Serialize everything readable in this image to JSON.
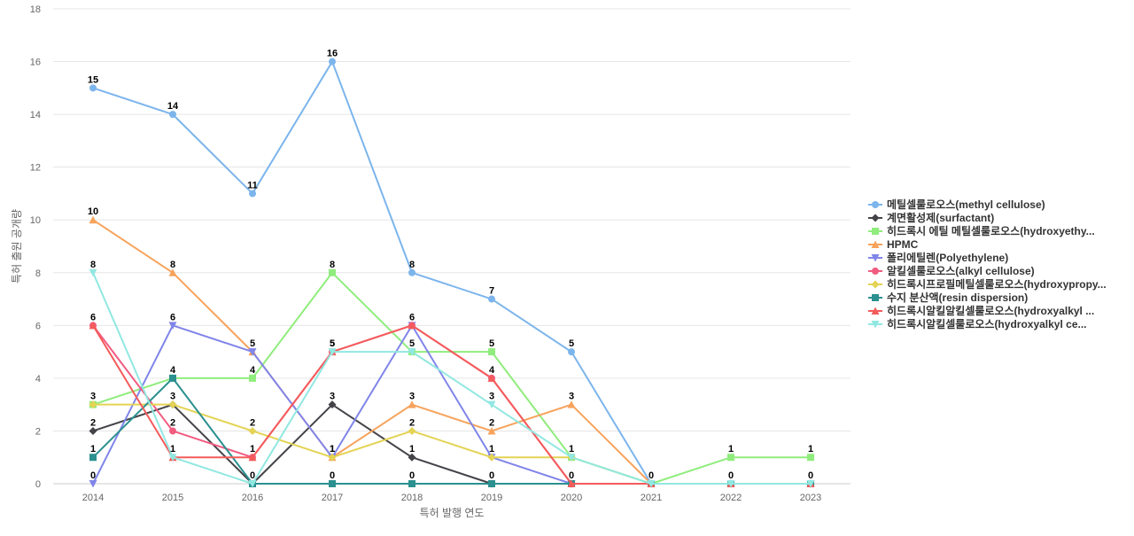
{
  "chart_data": {
    "type": "line",
    "title": "",
    "xlabel": "특허 발행 연도",
    "ylabel": "특허 출원 공개량",
    "ylim": [
      0,
      18
    ],
    "yticks": [
      0,
      2,
      4,
      6,
      8,
      10,
      12,
      14,
      16,
      18
    ],
    "categories": [
      "2014",
      "2015",
      "2016",
      "2017",
      "2018",
      "2019",
      "2020",
      "2021",
      "2022",
      "2023"
    ],
    "grid": true,
    "legend_position": "right",
    "series": [
      {
        "name": "메틸셀룰로오스(methyl cellulose)",
        "color": "#7cb5ec",
        "marker": "circle",
        "values": [
          15,
          14,
          11,
          16,
          8,
          7,
          5,
          0,
          0,
          0
        ]
      },
      {
        "name": "계면활성제(surfactant)",
        "color": "#434348",
        "marker": "diamond",
        "values": [
          2,
          3,
          0,
          3,
          1,
          0,
          0,
          0,
          0,
          0
        ]
      },
      {
        "name": "히드록시 에틸 메틸셀룰로오스(hydroxyethy...",
        "color": "#90ed7d",
        "marker": "square",
        "values": [
          3,
          4,
          4,
          8,
          5,
          5,
          1,
          0,
          1,
          1
        ]
      },
      {
        "name": "HPMC",
        "color": "#f7a35c",
        "marker": "triangle",
        "values": [
          10,
          8,
          5,
          1,
          3,
          2,
          3,
          0,
          0,
          0
        ]
      },
      {
        "name": "폴리에틸렌(Polyethylene)",
        "color": "#8085e9",
        "marker": "triangle-down",
        "values": [
          0,
          6,
          5,
          1,
          6,
          1,
          0,
          0,
          0,
          0
        ]
      },
      {
        "name": "알킬셀룰로오스(alkyl cellulose)",
        "color": "#f15c80",
        "marker": "circle",
        "values": [
          6,
          2,
          1,
          5,
          6,
          4,
          0,
          0,
          0,
          0
        ]
      },
      {
        "name": "히드록시프로필메틸셀룰로오스(hydroxypropy...",
        "color": "#e4d354",
        "marker": "diamond",
        "values": [
          3,
          3,
          2,
          1,
          2,
          1,
          1,
          0,
          0,
          0
        ]
      },
      {
        "name": "수지 분산액(resin dispersion)",
        "color": "#2b908f",
        "marker": "square",
        "values": [
          1,
          4,
          0,
          0,
          0,
          0,
          0,
          0,
          0,
          0
        ]
      },
      {
        "name": "히드록시알킬알킬셀룰로오스(hydroxyalkyl ...",
        "color": "#f45b5b",
        "marker": "triangle",
        "values": [
          6,
          1,
          1,
          5,
          6,
          4,
          0,
          0,
          0,
          0
        ]
      },
      {
        "name": "히드록시알킬셀룰로오스(hydroxyalkyl ce...",
        "color": "#91e8e1",
        "marker": "triangle-down",
        "values": [
          8,
          1,
          0,
          5,
          5,
          3,
          1,
          0,
          0,
          0
        ]
      }
    ],
    "data_labels": [
      {
        "category": "2014",
        "labels": [
          "15",
          "10",
          "8",
          "6",
          "3",
          "2",
          "1",
          "0"
        ]
      },
      {
        "category": "2015",
        "labels": [
          "14",
          "8",
          "6",
          "4",
          "3",
          "2",
          "1"
        ]
      },
      {
        "category": "2016",
        "labels": [
          "11",
          "5",
          "4",
          "2",
          "1",
          "0"
        ]
      },
      {
        "category": "2017",
        "labels": [
          "16",
          "8",
          "5",
          "5",
          "3",
          "1",
          "1",
          "0"
        ]
      },
      {
        "category": "2018",
        "labels": [
          "8",
          "6",
          "5",
          "3",
          "2",
          "1",
          "0"
        ]
      },
      {
        "category": "2019",
        "labels": [
          "7",
          "5",
          "4",
          "3",
          "2",
          "1",
          "0"
        ]
      },
      {
        "category": "2020",
        "labels": [
          "5",
          "3",
          "1",
          "0"
        ]
      },
      {
        "category": "2021",
        "labels": [
          "0"
        ]
      },
      {
        "category": "2022",
        "labels": [
          "1",
          "0"
        ]
      },
      {
        "category": "2023",
        "labels": [
          "1",
          "0"
        ]
      }
    ]
  }
}
